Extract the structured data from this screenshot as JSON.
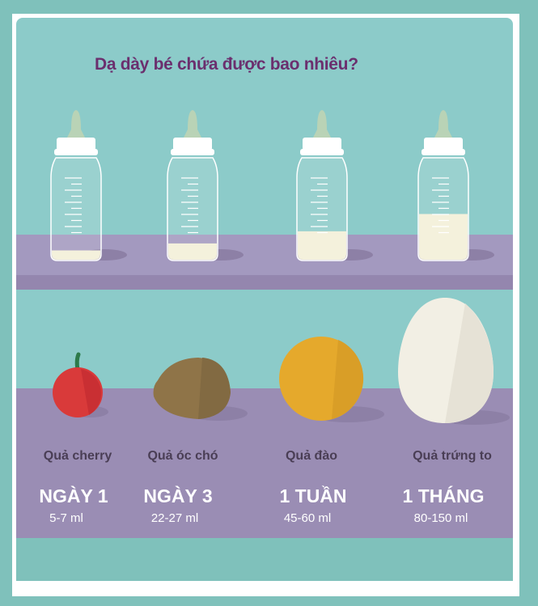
{
  "title": "Dạ dày bé chứa được bao nhiêu?",
  "colors": {
    "background": "#7fc1bb",
    "panel": "#8ccbc9",
    "shelf": "#a399bf",
    "shelf_front": "#9486ae",
    "title": "#6b2f6e",
    "milk": "#f4f1dc"
  },
  "items": [
    {
      "name": "Quả cherry",
      "period": "NGÀY 1",
      "volume": "5-7 ml",
      "milk_level": 0.08,
      "object": "cherry"
    },
    {
      "name": "Quả óc chó",
      "period": "NGÀY 3",
      "volume": "22-27 ml",
      "milk_level": 0.16,
      "object": "walnut"
    },
    {
      "name": "Quả đào",
      "period": "1 TUẦN",
      "volume": "45-60 ml",
      "milk_level": 0.3,
      "object": "peach"
    },
    {
      "name": "Quả trứng to",
      "period": "1 THÁNG",
      "volume": "80-150 ml",
      "milk_level": 0.5,
      "object": "egg"
    }
  ]
}
